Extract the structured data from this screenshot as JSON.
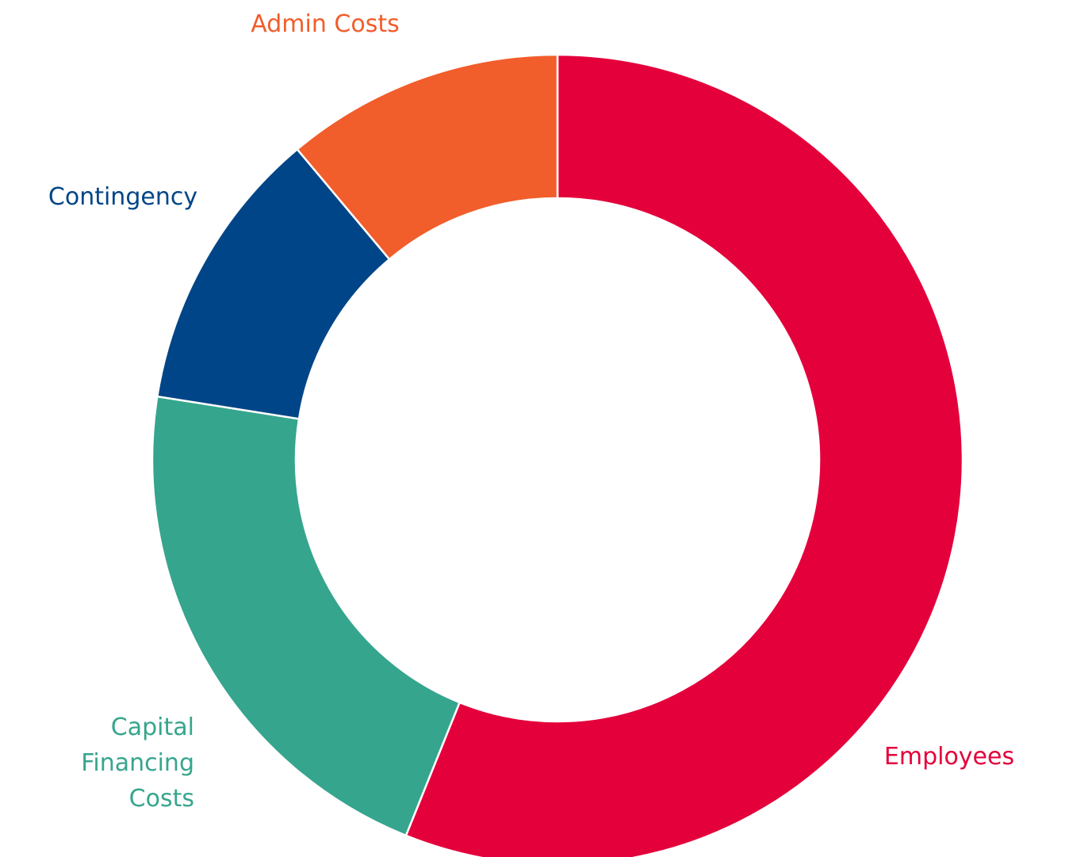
{
  "chart_data": {
    "type": "donut",
    "categories": [
      "Employees",
      "Capital Financing Costs",
      "Contingency",
      "Admin Costs"
    ],
    "values": [
      56.1,
      21.4,
      11.4,
      11.1
    ],
    "colors": [
      "#e4003b",
      "#36a58d",
      "#004587",
      "#f15d2b"
    ]
  }
}
